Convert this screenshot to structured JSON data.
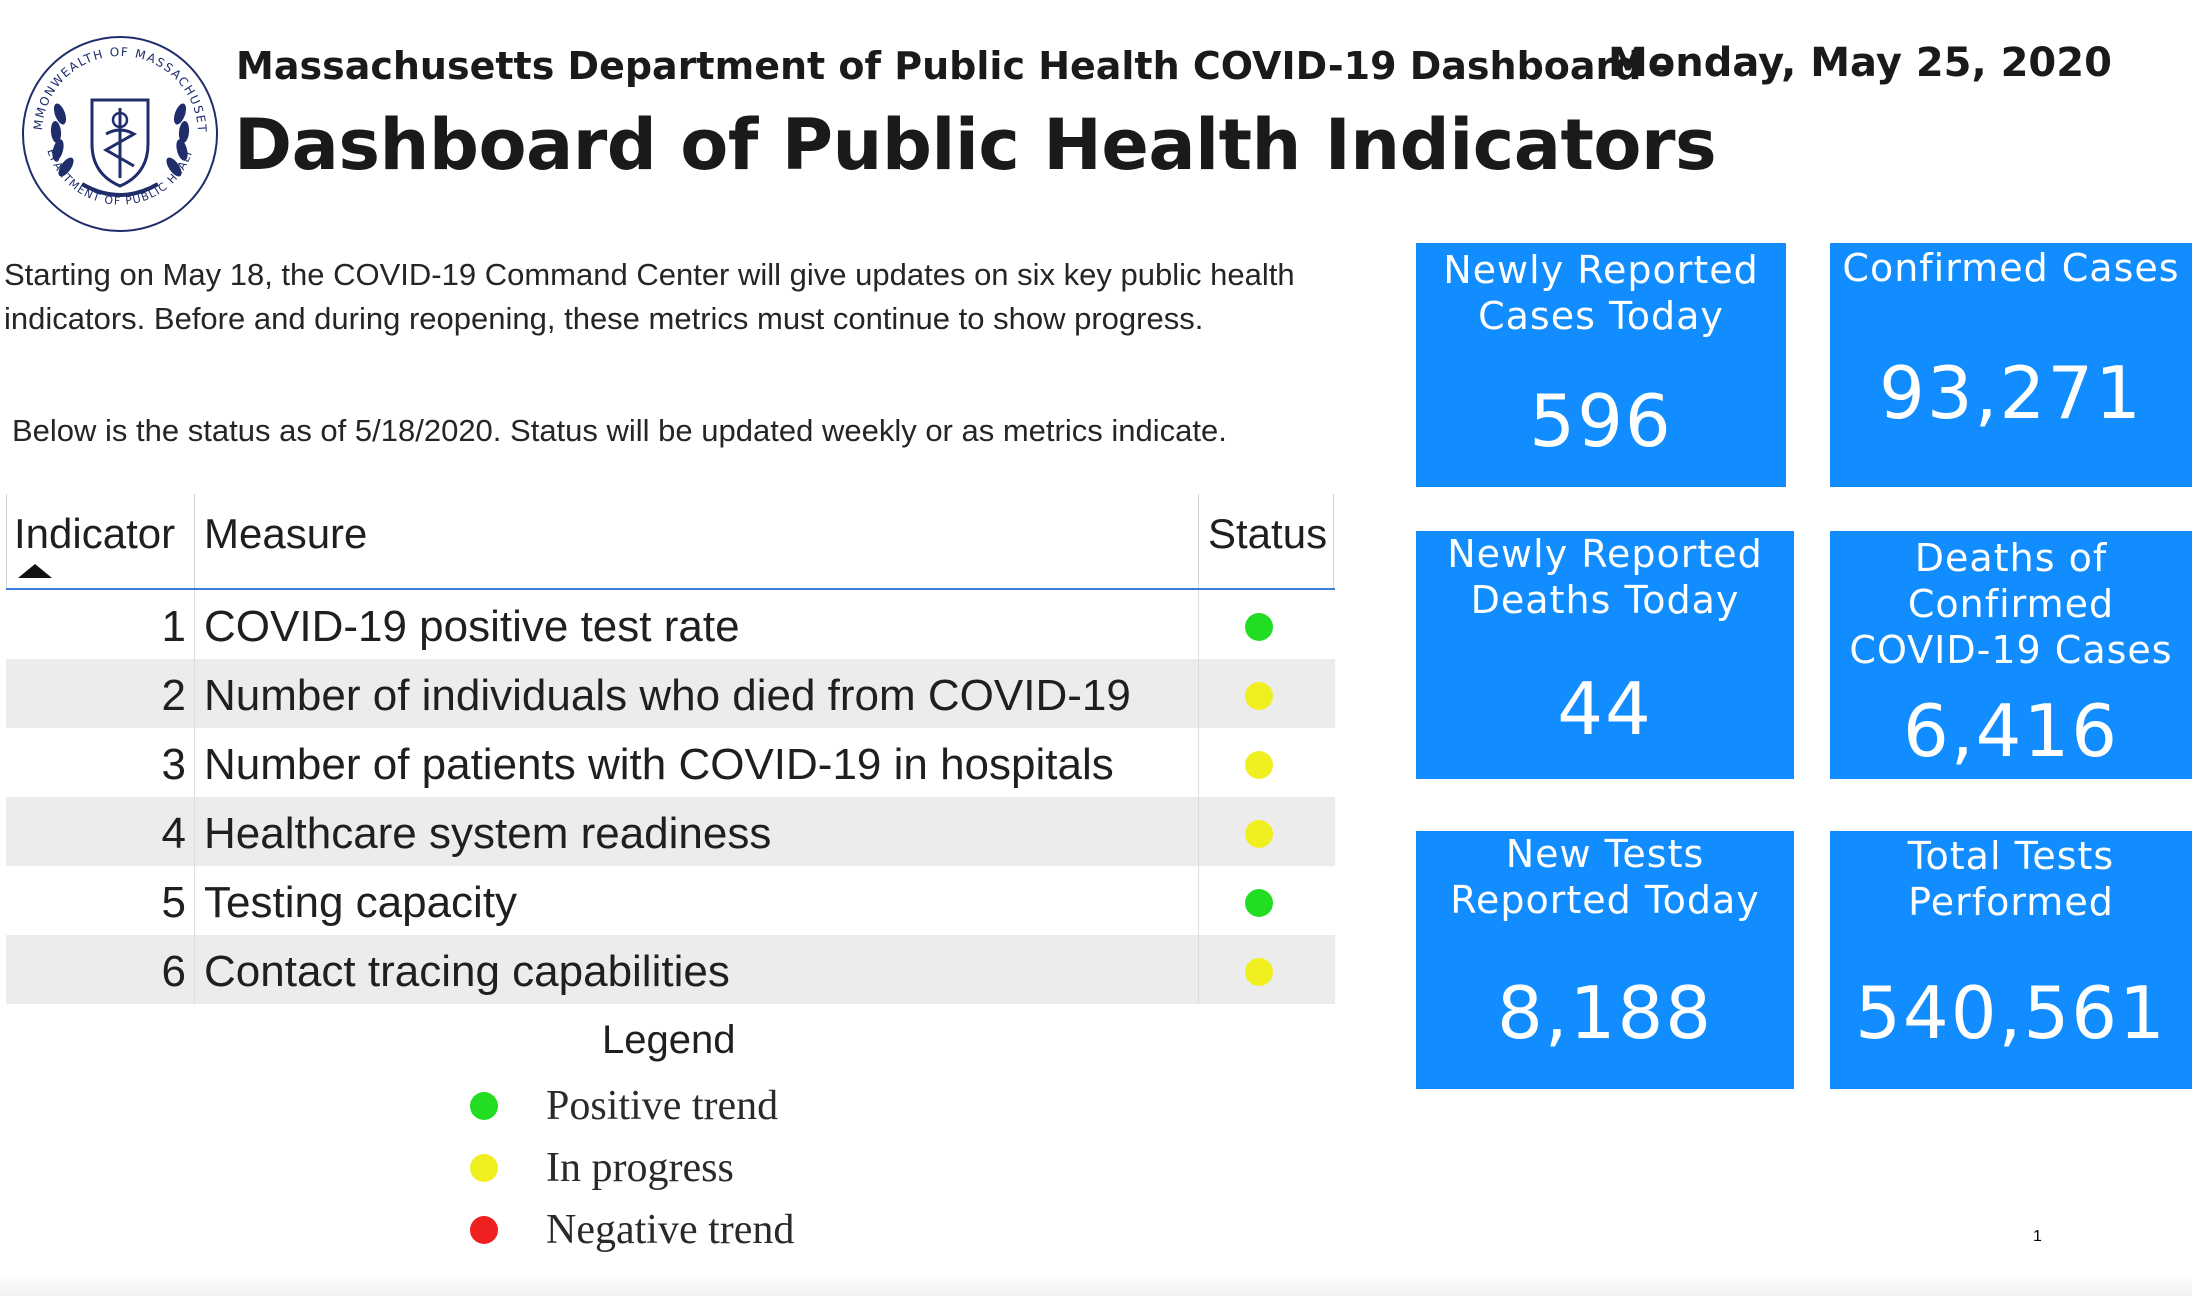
{
  "header": {
    "subtitle": "Massachusetts Department of Public Health COVID-19 Dashboard -",
    "date": "Monday, May 25, 2020",
    "title": "Dashboard of Public Health Indicators"
  },
  "seal": {
    "ring_top": "COMMONWEALTH OF MASSACHUSETTS",
    "ring_bottom": "DEPARTMENT OF PUBLIC HEALTH"
  },
  "intro": {
    "paragraph": "Starting on May 18, the COVID-19 Command Center will give updates on six key public health indicators. Before and during reopening, these metrics must continue to show progress.",
    "status_note": "Below is the status as of 5/18/2020. Status will be updated weekly or as metrics indicate."
  },
  "table": {
    "headers": {
      "indicator": "Indicator",
      "measure": "Measure",
      "status": "Status"
    },
    "rows": [
      {
        "num": "1",
        "measure": "COVID-19 positive test rate",
        "status": "positive",
        "color": "#22dd22"
      },
      {
        "num": "2",
        "measure": "Number of individuals who died from COVID-19",
        "status": "in-progress",
        "color": "#f0f020"
      },
      {
        "num": "3",
        "measure": "Number of patients with COVID-19 in hospitals",
        "status": "in-progress",
        "color": "#f0f020"
      },
      {
        "num": "4",
        "measure": "Healthcare system readiness",
        "status": "in-progress",
        "color": "#f0f020"
      },
      {
        "num": "5",
        "measure": "Testing capacity",
        "status": "positive",
        "color": "#22dd22"
      },
      {
        "num": "6",
        "measure": "Contact tracing capabilities",
        "status": "in-progress",
        "color": "#f0f020"
      }
    ]
  },
  "legend": {
    "title": "Legend",
    "items": [
      {
        "label": "Positive trend",
        "color": "#22dd22"
      },
      {
        "label": "In progress",
        "color": "#f0f020"
      },
      {
        "label": "Negative trend",
        "color": "#ee2020"
      }
    ]
  },
  "cards": {
    "new_cases": {
      "label_1": "Newly Reported",
      "label_2": "Cases Today",
      "value": "596"
    },
    "confirmed_cases": {
      "label_1": "Confirmed Cases",
      "value": "93,271"
    },
    "new_deaths": {
      "label_1": "Newly Reported",
      "label_2": "Deaths Today",
      "value": "44"
    },
    "deaths_confirmed": {
      "label_1": "Deaths of",
      "label_2": "Confirmed",
      "label_3": "COVID-19 Cases",
      "value": "6,416"
    },
    "new_tests": {
      "label_1": "New Tests",
      "label_2": "Reported Today",
      "value": "8,188"
    },
    "total_tests": {
      "label_1": "Total Tests",
      "label_2": "Performed",
      "value": "540,561"
    }
  },
  "page_number": "1",
  "colors": {
    "card_blue": "#118dff",
    "header_rule": "#3b7dd8"
  }
}
